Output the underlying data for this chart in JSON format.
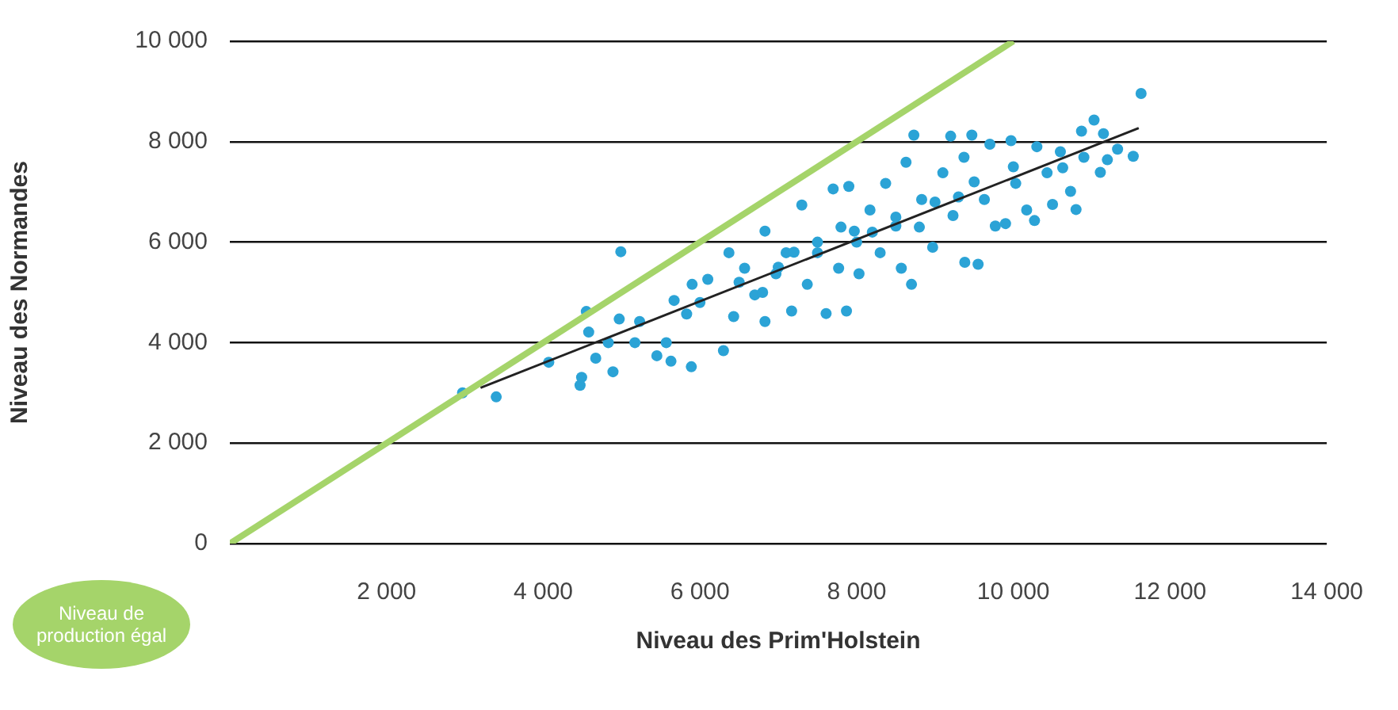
{
  "chart_data": {
    "type": "scatter",
    "xlabel": "Niveau des Prim'Holstein",
    "ylabel": "Niveau des Normandes",
    "xlim": [
      0,
      14000
    ],
    "ylim": [
      0,
      10000
    ],
    "xticks": [
      {
        "value": 2000,
        "label": "2 000"
      },
      {
        "value": 4000,
        "label": "4 000"
      },
      {
        "value": 6000,
        "label": "6 000"
      },
      {
        "value": 8000,
        "label": "8 000"
      },
      {
        "value": 10000,
        "label": "10 000"
      },
      {
        "value": 12000,
        "label": "12 000"
      },
      {
        "value": 14000,
        "label": "14 000"
      }
    ],
    "yticks": [
      0,
      {
        "value": 2000,
        "label": "2 000"
      },
      {
        "value": 4000,
        "label": "4 000"
      },
      {
        "value": 6000,
        "label": "6 000"
      },
      {
        "value": 8000,
        "label": "8 000"
      },
      {
        "value": 10000,
        "label": "10 000"
      }
    ],
    "grid": "y",
    "legend": false,
    "series": [
      {
        "color": "#2ba3d6",
        "marker": "circle",
        "x": [
          2970,
          3400,
          4070,
          4470,
          4490,
          4550,
          4580,
          4670,
          4830,
          4890,
          4970,
          4990,
          5170,
          5230,
          5450,
          5570,
          5630,
          5670,
          5830,
          5890,
          5900,
          6100,
          6300,
          6370,
          6430,
          6570,
          6700,
          6830,
          6830,
          6970,
          7100,
          7170,
          7300,
          7370,
          7500,
          7610,
          7700,
          7770,
          7870,
          7900,
          7970,
          8030,
          8170,
          8300,
          8370,
          8500,
          8570,
          8630,
          8700,
          8730,
          8830,
          8970,
          9100,
          9200,
          9230,
          9370,
          9380,
          9470,
          9550,
          9630,
          9700,
          9770,
          9900,
          9970,
          10030,
          10170,
          10270,
          10300,
          10430,
          10500,
          10600,
          10630,
          10730,
          10800,
          10870,
          10900,
          11030,
          11110,
          11150,
          11200,
          11330,
          11530,
          11630,
          8000,
          8500,
          7500,
          9000,
          7000,
          6500,
          6000,
          9500,
          10000,
          8200,
          7800,
          8800,
          9300,
          6800,
          7200
        ],
        "values": [
          3000,
          2920,
          3610,
          3150,
          3310,
          4620,
          4210,
          3690,
          4000,
          3420,
          4470,
          5810,
          4000,
          4420,
          3740,
          4000,
          3630,
          4840,
          4570,
          3520,
          5160,
          5260,
          3840,
          5790,
          4520,
          5480,
          4950,
          6220,
          4420,
          5370,
          5790,
          4630,
          6740,
          5160,
          5790,
          4580,
          7060,
          5480,
          4630,
          7110,
          6220,
          5370,
          6640,
          5790,
          7170,
          6320,
          5480,
          7590,
          5160,
          8130,
          6850,
          5900,
          7380,
          8110,
          6530,
          7690,
          5600,
          8130,
          5560,
          6850,
          7950,
          6320,
          6370,
          8020,
          7170,
          6640,
          6430,
          7900,
          7380,
          6750,
          7800,
          7480,
          7010,
          6650,
          8210,
          7690,
          8430,
          7390,
          8160,
          7640,
          7850,
          7710,
          8960,
          6000,
          6500,
          6000,
          6800,
          5500,
          5200,
          4800,
          7200,
          7500,
          6200,
          6300,
          6300,
          6900,
          5000,
          5800
        ]
      },
      {
        "type": "line",
        "marker": "none",
        "color": "#222222",
        "x": [
          3200,
          11600
        ],
        "values": [
          3100,
          8270
        ]
      },
      {
        "type": "line",
        "marker": "none",
        "name": "Niveau de production égal",
        "color": "#a5d46a",
        "x": [
          0,
          10000
        ],
        "values": [
          0,
          10000
        ]
      }
    ]
  }
}
